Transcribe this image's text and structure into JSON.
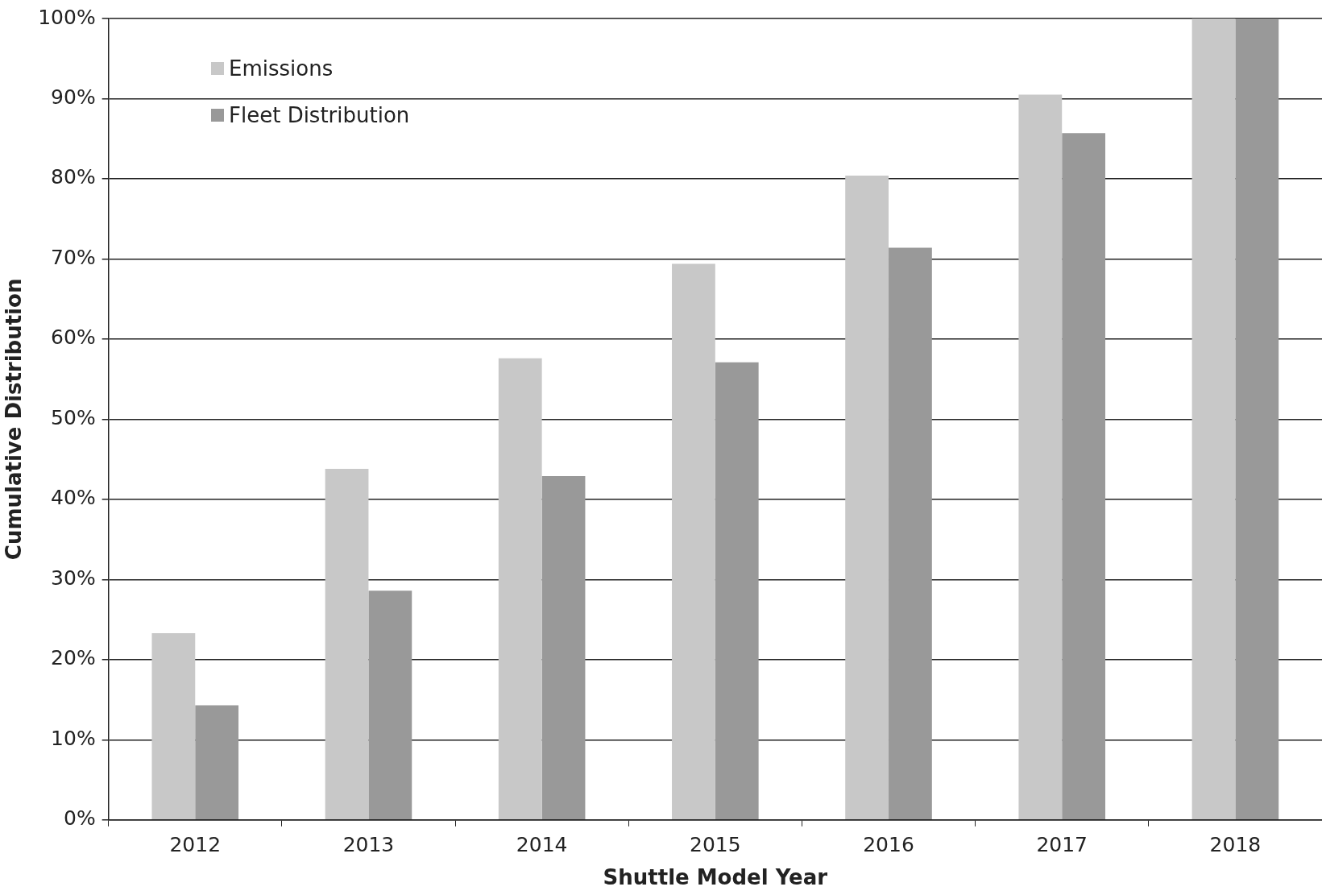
{
  "chart_data": {
    "type": "bar",
    "xlabel": "Shuttle Model Year",
    "ylabel": "Cumulative Distribution",
    "categories": [
      "2012",
      "2013",
      "2014",
      "2015",
      "2016",
      "2017",
      "2018"
    ],
    "series": [
      {
        "name": "Emissions",
        "color": "#c8c8c8",
        "values": [
          23.3,
          43.8,
          57.6,
          69.4,
          80.4,
          90.5,
          100
        ]
      },
      {
        "name": "Fleet Distribution",
        "color": "#999999",
        "values": [
          14.3,
          28.6,
          42.9,
          57.1,
          71.4,
          85.7,
          100
        ]
      }
    ],
    "ylim": [
      0,
      100
    ],
    "yticks": [
      {
        "value": 0,
        "label": "0%"
      },
      {
        "value": 10,
        "label": "10%"
      },
      {
        "value": 20,
        "label": "20%"
      },
      {
        "value": 30,
        "label": "30%"
      },
      {
        "value": 40,
        "label": "40%"
      },
      {
        "value": 50,
        "label": "50%"
      },
      {
        "value": 60,
        "label": "60%"
      },
      {
        "value": 70,
        "label": "70%"
      },
      {
        "value": 80,
        "label": "80%"
      },
      {
        "value": 90,
        "label": "90%"
      },
      {
        "value": 100,
        "label": "100%"
      }
    ],
    "grid": "y",
    "legend": "top left"
  }
}
